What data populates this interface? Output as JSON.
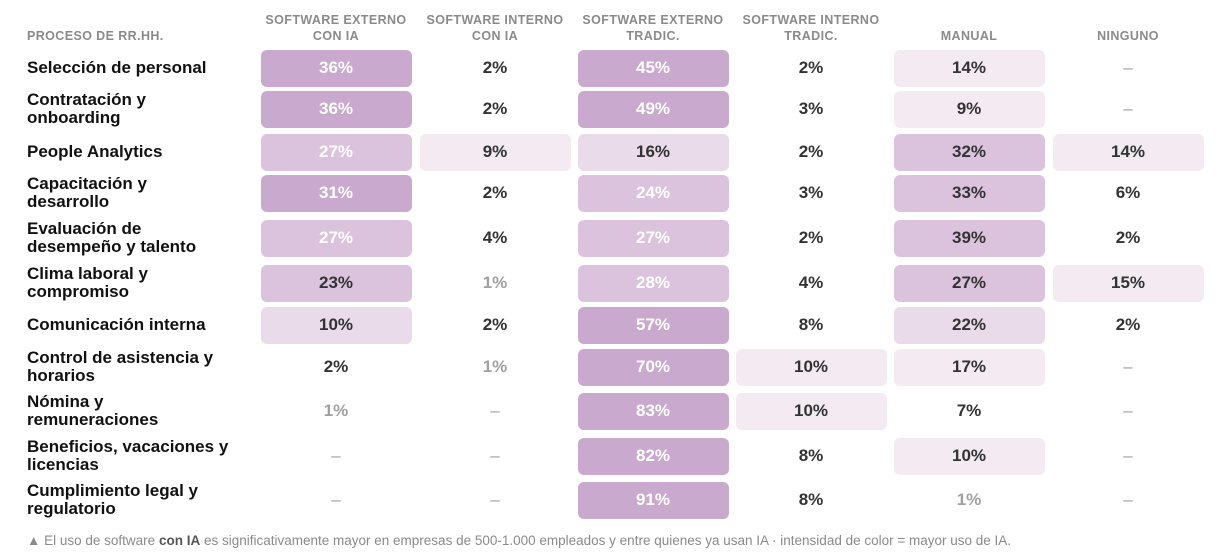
{
  "chart_data": {
    "type": "heatmap",
    "row_header": "PROCESO DE RR.HH.",
    "columns": [
      [
        "SOFTWARE EXTERNO",
        "CON IA"
      ],
      [
        "SOFTWARE INTERNO",
        "CON IA"
      ],
      [
        "SOFTWARE EXTERNO",
        "TRADIC."
      ],
      [
        "SOFTWARE INTERNO",
        "TRADIC."
      ],
      [
        "MANUAL"
      ],
      [
        "NINGUNO"
      ]
    ],
    "rows": [
      {
        "label": [
          "Selección de personal"
        ],
        "values": [
          36,
          2,
          45,
          2,
          14,
          null
        ]
      },
      {
        "label": [
          "Contratación y",
          "onboarding"
        ],
        "values": [
          36,
          2,
          49,
          3,
          9,
          null
        ]
      },
      {
        "label": [
          "People Analytics"
        ],
        "values": [
          27,
          9,
          16,
          2,
          32,
          14
        ]
      },
      {
        "label": [
          "Capacitación y",
          "desarrollo"
        ],
        "values": [
          31,
          2,
          24,
          3,
          33,
          6
        ]
      },
      {
        "label": [
          "Evaluación de",
          "desempeño y talento"
        ],
        "values": [
          27,
          4,
          27,
          2,
          39,
          2
        ]
      },
      {
        "label": [
          "Clima laboral y",
          "compromiso"
        ],
        "values": [
          23,
          1,
          28,
          4,
          27,
          15
        ]
      },
      {
        "label": [
          "Comunicación interna"
        ],
        "values": [
          10,
          2,
          57,
          8,
          22,
          2
        ]
      },
      {
        "label": [
          "Control de asistencia y",
          "horarios"
        ],
        "values": [
          2,
          1,
          70,
          10,
          17,
          null
        ]
      },
      {
        "label": [
          "Nómina y",
          "remuneraciones"
        ],
        "values": [
          1,
          null,
          83,
          10,
          7,
          null
        ]
      },
      {
        "label": [
          "Beneficios, vacaciones y",
          "licencias"
        ],
        "values": [
          null,
          null,
          82,
          8,
          10,
          null
        ]
      },
      {
        "label": [
          "Cumplimiento legal y",
          "regulatorio"
        ],
        "values": [
          null,
          null,
          91,
          8,
          1,
          null
        ]
      }
    ],
    "value_suffix": "%",
    "missing_text": "–",
    "colors": {
      "strong": "#c9a9cd",
      "medium": "#dcc3dd",
      "light": "#e9dbe9",
      "faint": "#f3eaf2",
      "text_dark": "#333333",
      "text_muted": "#a0a0a0",
      "text_on_strong": "#ffffff"
    }
  },
  "footnote": {
    "marker": "▲",
    "part1": " El uso de software ",
    "bold": "con IA",
    "part2": " es significativamente mayor en empresas de 500-1.000 empleados y entre quienes ya usan IA · intensidad de color = mayor uso de IA."
  }
}
